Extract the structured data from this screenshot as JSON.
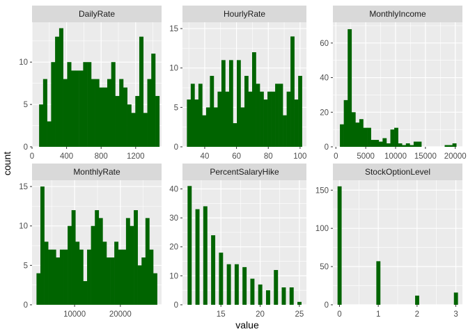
{
  "figure": {
    "xlabel": "value",
    "ylabel": "count",
    "colors": {
      "bar": "#006400",
      "panel_bg": "#EBEBEB",
      "strip_bg": "#D9D9D9",
      "grid": "#FFFFFF"
    }
  },
  "chart_data": [
    {
      "type": "bar",
      "title": "DailyRate",
      "xlim": [
        0,
        1500
      ],
      "ylim": [
        0,
        14.7
      ],
      "xticks": [
        0,
        400,
        800,
        1200
      ],
      "xtick_labels": [
        "0",
        "400",
        "800",
        "1200"
      ],
      "yticks": [
        0,
        5,
        10
      ],
      "ytick_labels": [
        "0",
        "5",
        "10"
      ],
      "bar_width": 46.4,
      "x": [
        105,
        151,
        197,
        244,
        290,
        337,
        383,
        430,
        476,
        522,
        569,
        615,
        662,
        708,
        754,
        801,
        847,
        894,
        940,
        987,
        1033,
        1079,
        1126,
        1172,
        1219,
        1265,
        1311,
        1358,
        1404,
        1451
      ],
      "values": [
        5,
        8,
        3,
        10,
        13,
        14,
        8,
        10,
        9,
        9,
        9,
        10,
        10,
        8,
        8,
        7,
        7,
        8,
        10,
        6,
        8,
        7,
        5,
        4,
        6,
        13,
        4,
        8,
        11,
        6
      ]
    },
    {
      "type": "bar",
      "title": "HourlyRate",
      "xlim": [
        26,
        104
      ],
      "ylim": [
        0,
        15.8
      ],
      "xticks": [
        40,
        60,
        80,
        100
      ],
      "xtick_labels": [
        "40",
        "60",
        "80",
        "100"
      ],
      "yticks": [
        0,
        5,
        10,
        15
      ],
      "ytick_labels": [
        "0",
        "5",
        "10",
        "15"
      ],
      "bar_width": 2.414,
      "x": [
        30,
        32.41,
        34.83,
        37.24,
        39.66,
        42.07,
        44.48,
        46.9,
        49.31,
        51.72,
        54.14,
        56.55,
        58.97,
        61.38,
        63.79,
        66.21,
        68.62,
        71.03,
        73.45,
        75.86,
        78.28,
        80.69,
        83.1,
        85.52,
        87.93,
        90.34,
        92.76,
        95.17,
        97.59,
        100
      ],
      "values": [
        6,
        8,
        6,
        8,
        4,
        5,
        9,
        5,
        7,
        11,
        7,
        11,
        3,
        11,
        5,
        9,
        7,
        12,
        8,
        7,
        6,
        7,
        7,
        8,
        8,
        4,
        7,
        14,
        6,
        9
      ]
    },
    {
      "type": "bar",
      "title": "MonthlyIncome",
      "xlim": [
        -500,
        21200
      ],
      "ylim": [
        0,
        72
      ],
      "xticks": [
        0,
        5000,
        10000,
        15000,
        20000
      ],
      "xtick_labels": [
        "0",
        "5000",
        "10000",
        "15000",
        "20000"
      ],
      "yticks": [
        0,
        20,
        40,
        60
      ],
      "ytick_labels": [
        "0",
        "20",
        "40",
        "60"
      ],
      "bar_width": 650,
      "x": [
        1000,
        1650,
        2300,
        2950,
        3600,
        4250,
        4900,
        5550,
        6200,
        6850,
        7500,
        8150,
        8800,
        9450,
        10100,
        10750,
        11400,
        12050,
        12700,
        13350,
        14000,
        14650,
        15300,
        15950,
        16600,
        17250,
        17900,
        18550,
        19200,
        19850
      ],
      "values": [
        13,
        27,
        68,
        20,
        14,
        16,
        11,
        11,
        4,
        4,
        3,
        5,
        2,
        10,
        11,
        2,
        1,
        2,
        1,
        3,
        3,
        0,
        0,
        0,
        0,
        0,
        0,
        1,
        1,
        2
      ]
    },
    {
      "type": "bar",
      "title": "MonthlyRate",
      "xlim": [
        700,
        29000
      ],
      "ylim": [
        0,
        15.8
      ],
      "xticks": [
        10000,
        20000
      ],
      "xtick_labels": [
        "10000",
        "20000"
      ],
      "yticks": [
        0,
        5,
        10,
        15
      ],
      "ytick_labels": [
        "0",
        "5",
        "10",
        "15"
      ],
      "bar_width": 850,
      "x": [
        2100,
        2950,
        3800,
        4650,
        5500,
        6350,
        7200,
        8050,
        8900,
        9750,
        10600,
        11450,
        12300,
        13150,
        14000,
        14850,
        15700,
        16550,
        17400,
        18250,
        19100,
        19950,
        20800,
        21650,
        22500,
        23350,
        24200,
        25050,
        25900,
        26750,
        27600
      ],
      "values": [
        4,
        15,
        8,
        7,
        7,
        6,
        7,
        7,
        10,
        12,
        8,
        7,
        3,
        7,
        10,
        12,
        11,
        8,
        6,
        6,
        8,
        7,
        7,
        11,
        10,
        12,
        5,
        6,
        11,
        7,
        4
      ]
    },
    {
      "type": "bar",
      "title": "PercentSalaryHike",
      "xlim": [
        10.1,
        25.9
      ],
      "ylim": [
        0,
        43
      ],
      "xticks": [
        15,
        20,
        25
      ],
      "xtick_labels": [
        "15",
        "20",
        "25"
      ],
      "yticks": [
        0,
        10,
        20,
        30,
        40
      ],
      "ytick_labels": [
        "0",
        "10",
        "20",
        "30",
        "40"
      ],
      "bar_width": 0.5,
      "x": [
        11,
        12,
        13,
        14,
        15,
        16,
        17,
        18,
        19,
        20,
        21,
        22,
        23,
        24,
        25
      ],
      "values": [
        41,
        33,
        34,
        24,
        18,
        14,
        14,
        13,
        9,
        7,
        5,
        12,
        6,
        6,
        1
      ]
    },
    {
      "type": "bar",
      "title": "StockOptionLevel",
      "xlim": [
        -0.17,
        3.17
      ],
      "ylim": [
        0,
        163
      ],
      "xticks": [
        0,
        1,
        2,
        3
      ],
      "xtick_labels": [
        "0",
        "1",
        "2",
        "3"
      ],
      "yticks": [
        0,
        50,
        100,
        150
      ],
      "ytick_labels": [
        "0",
        "50",
        "100",
        "150"
      ],
      "bar_width": 0.1,
      "x": [
        0,
        1,
        2,
        3
      ],
      "values": [
        155,
        57,
        12,
        16
      ]
    }
  ]
}
